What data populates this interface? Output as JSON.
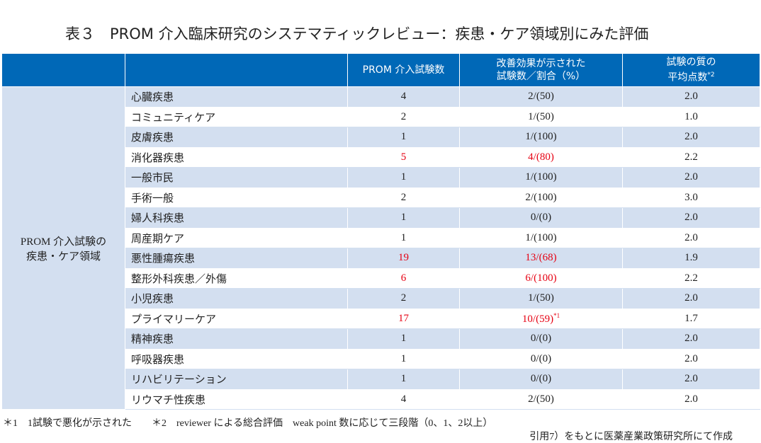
{
  "header": {
    "title": "表３　PROM 介入臨床研究のシステマティックレビュー：疾患・ケア領域別にみた評価"
  },
  "table": {
    "highlight_color": "#e60012",
    "columns": [
      {
        "lines": [
          "PROM 介入試験数"
        ]
      },
      {
        "lines": [
          "改善効果が示された",
          "試験数／割合（%）"
        ]
      },
      {
        "lines": [
          "試験の質の",
          "平均点数"
        ],
        "note": "*2"
      }
    ],
    "group_label": [
      "PROM 介入試験の",
      "疾患・ケア領域"
    ],
    "rows": [
      {
        "cells": [
          "心臓疾患",
          "4",
          "2/(50)",
          "2.0"
        ],
        "highlighted": false
      },
      {
        "cells": [
          "コミュニティケア",
          "2",
          "1/(50)",
          "1.0"
        ],
        "highlighted": false
      },
      {
        "cells": [
          "皮膚疾患",
          "1",
          "1/(100)",
          "2.0"
        ],
        "highlighted": false
      },
      {
        "cells": [
          "消化器疾患",
          "5",
          "4/(80)",
          "2.2"
        ],
        "highlighted": true
      },
      {
        "cells": [
          "一般市民",
          "1",
          "1/(100)",
          "2.0"
        ],
        "highlighted": false
      },
      {
        "cells": [
          "手術一般",
          "2",
          "2/(100)",
          "3.0"
        ],
        "highlighted": false
      },
      {
        "cells": [
          "婦人科疾患",
          "1",
          "0/(0)",
          "2.0"
        ],
        "highlighted": false
      },
      {
        "cells": [
          "周産期ケア",
          "1",
          "1/(100)",
          "2.0"
        ],
        "highlighted": false
      },
      {
        "cells": [
          "悪性腫瘍疾患",
          "19",
          "13/(68)",
          "1.9"
        ],
        "highlighted": true
      },
      {
        "cells": [
          "整形外科疾患／外傷",
          "6",
          "6/(100)",
          "2.2"
        ],
        "highlighted": true
      },
      {
        "cells": [
          "小児疾患",
          "2",
          "1/(50)",
          "2.0"
        ],
        "highlighted": false
      },
      {
        "cells": [
          "プライマリーケア",
          "17",
          "10/(59)",
          "1.7"
        ],
        "highlighted": true,
        "note": "*1"
      },
      {
        "cells": [
          "精神疾患",
          "1",
          "0/(0)",
          "2.0"
        ],
        "highlighted": false
      },
      {
        "cells": [
          "呼吸器疾患",
          "1",
          "0/(0)",
          "2.0"
        ],
        "highlighted": false
      },
      {
        "cells": [
          "リハビリテーション",
          "1",
          "0/(0)",
          "2.0"
        ],
        "highlighted": false
      },
      {
        "cells": [
          "リウマチ性疾患",
          "4",
          "2/(50)",
          "2.0"
        ],
        "highlighted": false
      }
    ]
  },
  "footnotes": [
    "＊1　1試験で悪化が示された",
    "＊2　reviewer による総合評価　weak point 数に応じて三段階（0、1、2以上）"
  ],
  "source": "引用7）をもとに医薬産業政策研究所にて作成"
}
